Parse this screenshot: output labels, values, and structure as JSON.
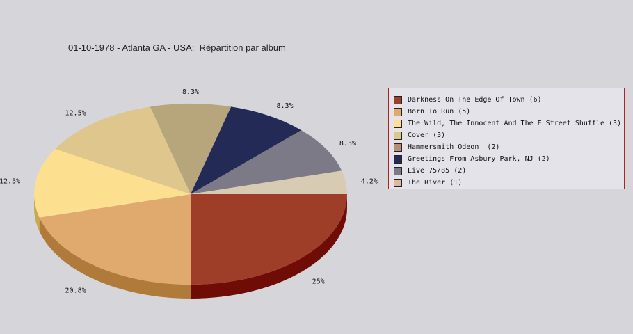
{
  "chart_data": {
    "type": "pie",
    "title": "01-10-1978 - Atlanta GA - USA:  Répartition par album",
    "slices": [
      {
        "label": "Darkness On The Edge Of Town (6)",
        "value": 6,
        "percent_label": "25%",
        "color": "#9e3e29",
        "side_color": "#6e0c05"
      },
      {
        "label": "Born To Run (5)",
        "value": 5,
        "percent_label": "20.8%",
        "color": "#e0aa6e",
        "side_color": "#b07a3a"
      },
      {
        "label": "The Wild, The Innocent And The E Street Shuffle (3)",
        "value": 3,
        "percent_label": "12.5%",
        "color": "#fddf90",
        "side_color": "#c9a850"
      },
      {
        "label": "Cover (3)",
        "value": 3,
        "percent_label": "12.5%",
        "color": "#dfc68d",
        "side_color": "#ad9458"
      },
      {
        "label": "Hammersmith Odeon  (2)",
        "value": 2,
        "percent_label": "8.3%",
        "color": "#b7a57c",
        "side_color": "#857348"
      },
      {
        "label": "Greetings From Asbury Park, NJ (2)",
        "value": 2,
        "percent_label": "8.3%",
        "color": "#222a55",
        "side_color": "#101530"
      },
      {
        "label": "Live 75/85 (2)",
        "value": 2,
        "percent_label": "8.3%",
        "color": "#7b7a86",
        "side_color": "#52515c"
      },
      {
        "label": "The River (1)",
        "value": 1,
        "percent_label": "4.2%",
        "color": "#d8cbb3",
        "side_color": "#aa9d85"
      }
    ],
    "legend_swatch_colors": [
      "#9e3e29",
      "#e0aa6e",
      "#fddf90",
      "#dfc68d",
      "#b98d74",
      "#222a55",
      "#7b7a86",
      "#e0b7a0"
    ],
    "legend_position": "right",
    "start_angle_deg": 0,
    "direction": "clockwise",
    "style": "3d-pie"
  }
}
